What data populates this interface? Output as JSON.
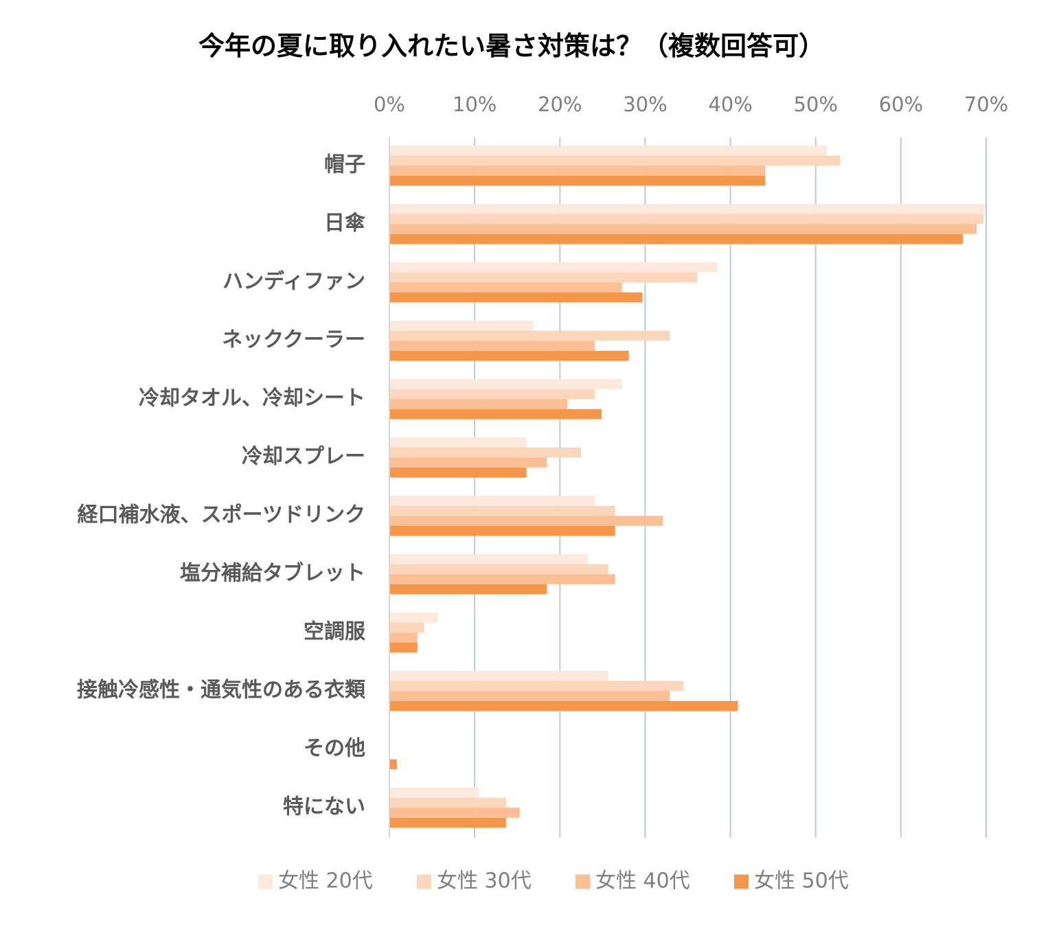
{
  "chart_data": {
    "type": "bar",
    "orientation": "horizontal",
    "title": "今年の夏に取り入れたい暑さ対策は？（複数回答可）",
    "xlabel": "",
    "ylabel": "",
    "xlim": [
      0,
      70
    ],
    "x_ticks": [
      0,
      10,
      20,
      30,
      40,
      50,
      60,
      70
    ],
    "x_tick_labels": [
      "0%",
      "10%",
      "20%",
      "30%",
      "40%",
      "50%",
      "60%",
      "70%"
    ],
    "x_axis_position": "top",
    "grid": true,
    "legend_position": "bottom",
    "categories": [
      "帽子",
      "日傘",
      "ハンディファン",
      "ネッククーラー",
      "冷却タオル、冷却シート",
      "冷却スプレー",
      "経口補水液、スポーツドリンク",
      "塩分補給タブレット",
      "空調服",
      "接触冷感性・通気性のある衣類",
      "その他",
      "特にない"
    ],
    "series": [
      {
        "name": "女性 20代",
        "color": "#fde9dc",
        "values": [
          51.2,
          69.8,
          38.4,
          16.8,
          27.2,
          16.0,
          24.0,
          23.2,
          5.6,
          25.6,
          0.0,
          10.4
        ]
      },
      {
        "name": "女性 30代",
        "color": "#fcd6bb",
        "values": [
          52.8,
          69.6,
          36.0,
          32.8,
          24.0,
          22.4,
          26.4,
          25.6,
          4.0,
          34.4,
          0.0,
          13.6
        ]
      },
      {
        "name": "女性 40代",
        "color": "#fbbf93",
        "values": [
          44.0,
          68.8,
          27.2,
          24.0,
          20.8,
          18.4,
          32.0,
          26.4,
          3.2,
          32.8,
          0.0,
          15.2
        ]
      },
      {
        "name": "女性 50代",
        "color": "#f5964a",
        "values": [
          44.0,
          67.2,
          29.6,
          28.0,
          24.8,
          16.0,
          26.4,
          18.4,
          3.2,
          40.8,
          0.8,
          13.6
        ]
      }
    ]
  }
}
